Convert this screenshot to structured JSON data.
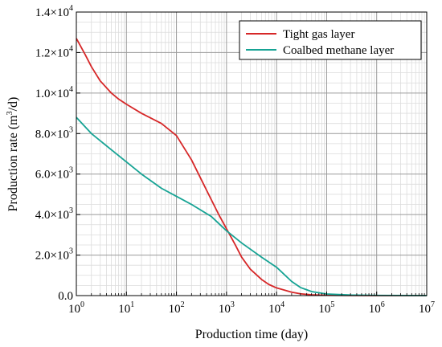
{
  "chart_data": {
    "type": "line",
    "xlabel": "Production time (day)",
    "ylabel_main": "Production rate (m",
    "ylabel_sup": "3",
    "ylabel_tail": "/d)",
    "x_scale": "log",
    "xlim": [
      1,
      10000000
    ],
    "ylim": [
      0,
      14000
    ],
    "grid": true,
    "legend_position": "top-right",
    "x_ticks": [
      {
        "value": 1,
        "base": "10",
        "exp": "0"
      },
      {
        "value": 10,
        "base": "10",
        "exp": "1"
      },
      {
        "value": 100,
        "base": "10",
        "exp": "2"
      },
      {
        "value": 1000,
        "base": "10",
        "exp": "3"
      },
      {
        "value": 10000,
        "base": "10",
        "exp": "4"
      },
      {
        "value": 100000,
        "base": "10",
        "exp": "5"
      },
      {
        "value": 1000000,
        "base": "10",
        "exp": "6"
      },
      {
        "value": 10000000,
        "base": "10",
        "exp": "7"
      }
    ],
    "y_ticks": [
      {
        "value": 0,
        "mant": "0.0",
        "exp": ""
      },
      {
        "value": 2000,
        "mant": "2.0×10",
        "exp": "3"
      },
      {
        "value": 4000,
        "mant": "4.0×10",
        "exp": "3"
      },
      {
        "value": 6000,
        "mant": "6.0×10",
        "exp": "3"
      },
      {
        "value": 8000,
        "mant": "8.0×10",
        "exp": "3"
      },
      {
        "value": 10000,
        "mant": "1.0×10",
        "exp": "4"
      },
      {
        "value": 12000,
        "mant": "1.2×10",
        "exp": "4"
      },
      {
        "value": 14000,
        "mant": "1.4×10",
        "exp": "4"
      }
    ],
    "series": [
      {
        "name": "Tight gas layer",
        "color": "#d62728",
        "x": [
          1,
          1.5,
          2,
          3,
          5,
          7,
          10,
          20,
          50,
          100,
          200,
          400,
          700,
          1000,
          1500,
          2000,
          3000,
          5000,
          7000,
          10000,
          20000,
          30000,
          50000,
          100000,
          300000,
          1000000,
          10000000
        ],
        "y": [
          12700,
          11900,
          11300,
          10600,
          10000,
          9700,
          9450,
          9000,
          8500,
          7900,
          6700,
          5200,
          4000,
          3300,
          2500,
          1900,
          1300,
          800,
          550,
          380,
          170,
          90,
          40,
          15,
          5,
          2,
          0
        ]
      },
      {
        "name": "Coalbed methane layer",
        "color": "#16a394",
        "x": [
          1,
          2,
          5,
          10,
          20,
          50,
          100,
          200,
          500,
          1000,
          2000,
          5000,
          10000,
          20000,
          30000,
          50000,
          100000,
          300000,
          1000000,
          10000000
        ],
        "y": [
          8800,
          8000,
          7200,
          6600,
          6000,
          5300,
          4900,
          4500,
          3900,
          3200,
          2600,
          1900,
          1400,
          700,
          400,
          200,
          80,
          30,
          10,
          0
        ]
      }
    ]
  }
}
